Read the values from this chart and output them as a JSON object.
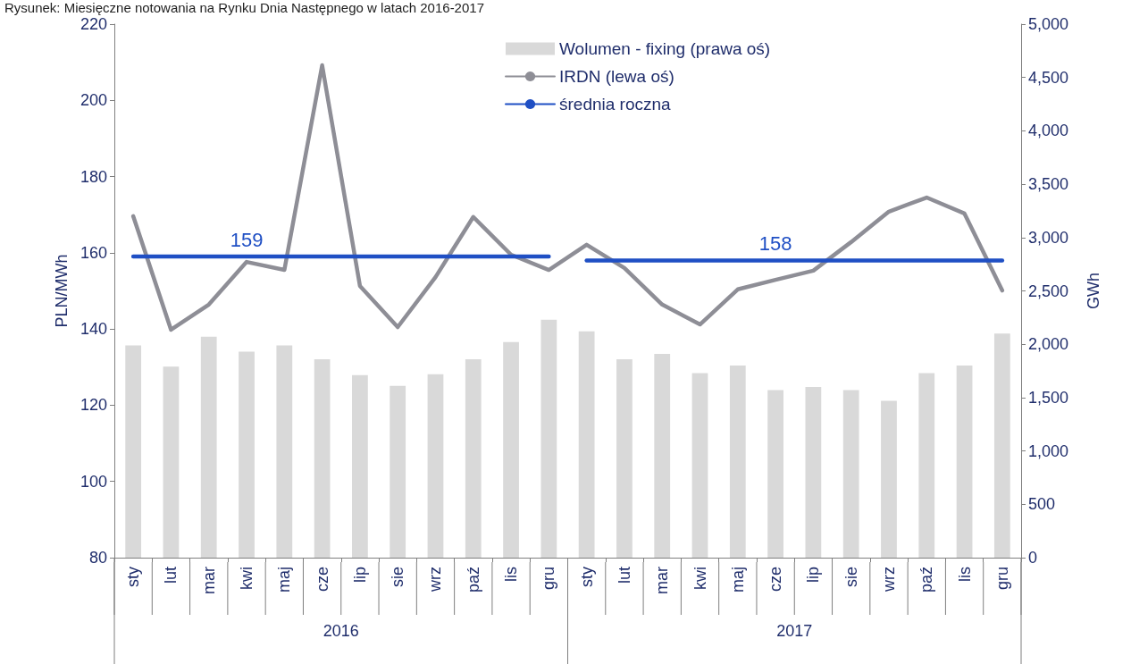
{
  "chart_data": {
    "type": "bar",
    "title": "Rysunek: Miesięczne notowania na Rynku Dnia Następnego w latach 2016-2017",
    "categories": [
      "sty",
      "lut",
      "mar",
      "kwi",
      "maj",
      "cze",
      "lip",
      "sie",
      "wrz",
      "paź",
      "lis",
      "gru",
      "sty",
      "lut",
      "mar",
      "kwi",
      "maj",
      "cze",
      "lip",
      "sie",
      "wrz",
      "paź",
      "lis",
      "gru"
    ],
    "annotations": [
      "2016",
      "2017"
    ],
    "series": [
      {
        "name": "Wolumen - fixing (prawa oś)",
        "axis": "y2",
        "color": "#d9d9d9",
        "values": [
          1990,
          1790,
          2070,
          1930,
          1990,
          1860,
          1710,
          1610,
          1720,
          1860,
          2020,
          2230,
          2120,
          1860,
          1910,
          1730,
          1800,
          1570,
          1600,
          1570,
          1470,
          1730,
          1800,
          2100
        ]
      },
      {
        "name": "IRDN (lewa oś)",
        "type": "line",
        "color": "#8e8e96",
        "values": [
          169.6,
          139.8,
          146.4,
          157.6,
          155.5,
          209.2,
          151.3,
          140.5,
          153.6,
          169.4,
          159.5,
          155.5,
          162.1,
          156,
          146.4,
          141.2,
          150.4,
          152.9,
          155.3,
          162.8,
          170.8,
          174.5,
          170.3,
          150.1
        ]
      },
      {
        "name": "średnia roczna",
        "type": "line",
        "color": "#1f4fc4",
        "values": [
          159,
          159,
          159,
          159,
          159,
          159,
          159,
          159,
          159,
          159,
          159,
          159,
          null,
          null,
          null,
          null,
          null,
          null,
          null,
          null,
          null,
          null,
          null,
          null
        ],
        "value_labels": [
          null,
          null,
          null,
          "159",
          null,
          null,
          null,
          null,
          null,
          null,
          null,
          null,
          null,
          null,
          null,
          null,
          null,
          null,
          null,
          null,
          null,
          null,
          null,
          null
        ]
      },
      {
        "type": "line",
        "color": "#1f4fc4",
        "values": [
          null,
          null,
          null,
          null,
          null,
          null,
          null,
          null,
          null,
          null,
          null,
          null,
          158,
          158,
          158,
          158,
          158,
          158,
          158,
          158,
          158,
          158,
          158,
          158
        ],
        "value_labels": [
          null,
          null,
          null,
          null,
          null,
          null,
          null,
          null,
          null,
          null,
          null,
          null,
          null,
          null,
          null,
          null,
          null,
          "158",
          null,
          null,
          null,
          null,
          null,
          null
        ]
      }
    ],
    "ylabel": "PLN/MWh",
    "y2label": "GWh",
    "ylim": [
      80,
      220
    ],
    "yticks": [
      80,
      100,
      120,
      140,
      160,
      180,
      200,
      220
    ],
    "y2lim": [
      0,
      5000
    ],
    "y2ticks": [
      0,
      500,
      {
        "value": 1000,
        "label": "1,000"
      },
      {
        "value": 1500,
        "label": "1,500"
      },
      {
        "value": 2000,
        "label": "2,000"
      },
      {
        "value": 2500,
        "label": "2,500"
      },
      {
        "value": 3000,
        "label": "3,000"
      },
      {
        "value": 3500,
        "label": "3,500"
      },
      {
        "value": 4000,
        "label": "4,000"
      },
      {
        "value": 4500,
        "label": "4,500"
      },
      {
        "value": 5000,
        "label": "5,000"
      }
    ],
    "legend": "top",
    "grid": false,
    "marker": "none",
    "line_style": "solid"
  }
}
